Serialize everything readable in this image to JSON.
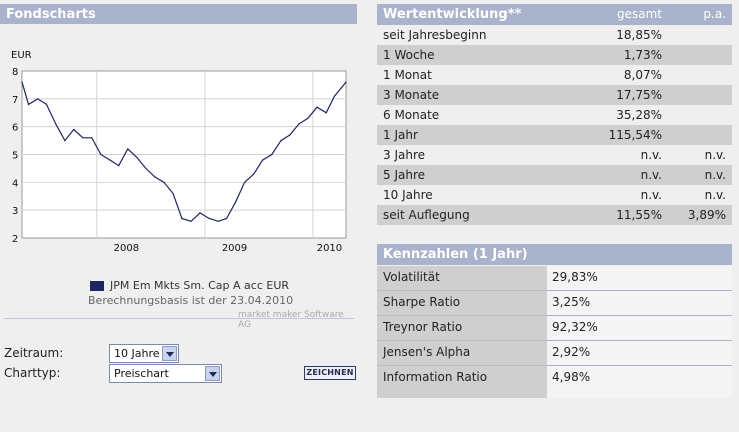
{
  "fondscharts": {
    "title": "Fondscharts",
    "currency": "EUR",
    "legend": "JPM Em Mkts Sm. Cap A acc EUR",
    "basis": "Berechnungsbasis ist der 23.04.2010",
    "credit": "market maker Software AG"
  },
  "chart_data": {
    "type": "line",
    "ylabel": "EUR",
    "ylim": [
      2,
      8
    ],
    "yticks": [
      "2",
      "3",
      "4",
      "5",
      "6",
      "7",
      "8"
    ],
    "xticks": [
      "2008",
      "2009",
      "2010"
    ],
    "x_range": [
      "2007-04-23",
      "2010-04-23"
    ],
    "series": [
      {
        "name": "JPM Em Mkts Sm. Cap A acc EUR",
        "x": [
          "2007-04-23",
          "2007-05-15",
          "2007-06-15",
          "2007-07-15",
          "2007-08-15",
          "2007-09-15",
          "2007-10-15",
          "2007-11-15",
          "2007-12-15",
          "2008-01-15",
          "2008-02-15",
          "2008-03-15",
          "2008-04-15",
          "2008-05-15",
          "2008-06-15",
          "2008-07-15",
          "2008-08-15",
          "2008-09-15",
          "2008-10-15",
          "2008-11-15",
          "2008-12-15",
          "2009-01-15",
          "2009-02-15",
          "2009-03-15",
          "2009-04-15",
          "2009-05-15",
          "2009-06-15",
          "2009-07-15",
          "2009-08-15",
          "2009-09-15",
          "2009-10-15",
          "2009-11-15",
          "2009-12-15",
          "2010-01-15",
          "2010-02-15",
          "2010-03-15",
          "2010-04-23"
        ],
        "values": [
          7.6,
          6.8,
          7.0,
          6.8,
          6.1,
          5.5,
          5.9,
          5.6,
          5.6,
          5.0,
          4.8,
          4.6,
          5.2,
          4.9,
          4.5,
          4.2,
          4.0,
          3.6,
          2.7,
          2.6,
          2.9,
          2.7,
          2.6,
          2.7,
          3.3,
          4.0,
          4.3,
          4.8,
          5.0,
          5.5,
          5.7,
          6.1,
          6.3,
          6.7,
          6.5,
          7.1,
          7.6
        ]
      }
    ],
    "grid": true,
    "color": "#1f2560"
  },
  "wertentwicklung": {
    "title": "Wertentwicklung**",
    "col_gesamt": "gesamt",
    "col_pa": "p.a.",
    "rows": [
      {
        "label": "seit Jahresbeginn",
        "gesamt": "18,85%",
        "pa": ""
      },
      {
        "label": "1 Woche",
        "gesamt": "1,73%",
        "pa": ""
      },
      {
        "label": "1 Monat",
        "gesamt": "8,07%",
        "pa": ""
      },
      {
        "label": "3 Monate",
        "gesamt": "17,75%",
        "pa": ""
      },
      {
        "label": "6 Monate",
        "gesamt": "35,28%",
        "pa": ""
      },
      {
        "label": "1 Jahr",
        "gesamt": "115,54%",
        "pa": ""
      },
      {
        "label": "3 Jahre",
        "gesamt": "n.v.",
        "pa": "n.v."
      },
      {
        "label": "5 Jahre",
        "gesamt": "n.v.",
        "pa": "n.v."
      },
      {
        "label": "10 Jahre",
        "gesamt": "n.v.",
        "pa": "n.v."
      },
      {
        "label": "seit Auflegung",
        "gesamt": "11,55%",
        "pa": "3,89%"
      }
    ]
  },
  "kennzahlen": {
    "title": "Kennzahlen (1 Jahr)",
    "rows": [
      {
        "label": "Volatilität",
        "value": "29,83%"
      },
      {
        "label": "Sharpe Ratio",
        "value": "3,25%"
      },
      {
        "label": "Treynor Ratio",
        "value": "92,32%"
      },
      {
        "label": "Jensen's Alpha",
        "value": "2,92%"
      },
      {
        "label": "Information Ratio",
        "value": "4,98%"
      }
    ]
  },
  "controls": {
    "zeitraum_label": "Zeitraum:",
    "zeitraum_value": "10 Jahre",
    "charttyp_label": "Charttyp:",
    "charttyp_value": "Preischart",
    "zeichnen_label": "ZEICHNEN"
  },
  "colors": {
    "header": "#a9b3cc",
    "alt_row": "#cfcfcf",
    "line": "#1f2560"
  }
}
